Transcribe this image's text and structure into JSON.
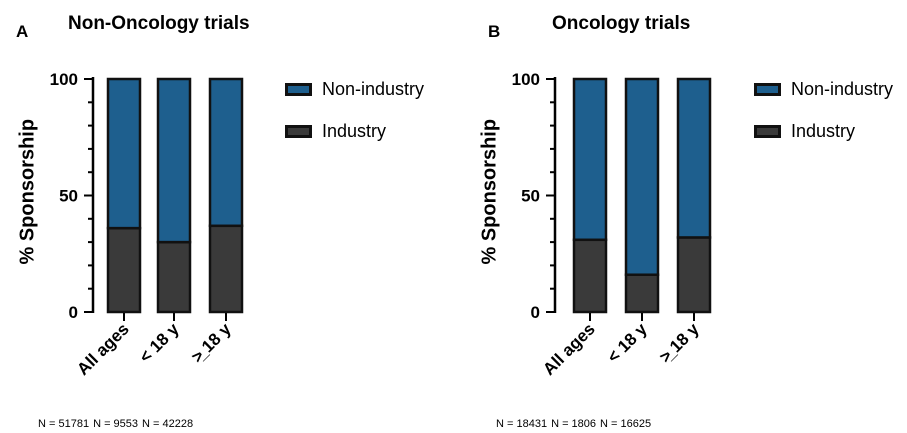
{
  "colors": {
    "non_industry": "#1e5f8e",
    "industry": "#3a3a3a",
    "stroke": "#111111"
  },
  "chart_data": [
    {
      "type": "bar",
      "stacked": true,
      "panel_label": "A",
      "title": "Non-Oncology trials",
      "ylabel": "% Sponsorship",
      "xlabel": "",
      "ylim": [
        0,
        100
      ],
      "yticks": [
        0,
        50,
        100
      ],
      "categories": [
        "All ages",
        "< 18 y",
        ">̲ 18 y"
      ],
      "series": [
        {
          "name": "Industry",
          "values": [
            36,
            30,
            37
          ]
        },
        {
          "name": "Non-industry",
          "values": [
            64,
            70,
            63
          ]
        }
      ],
      "legend": [
        "Non-industry",
        "Industry"
      ],
      "legend_position": "right",
      "annotations": [
        "N = 51781",
        "N = 9553",
        "N = 42228"
      ]
    },
    {
      "type": "bar",
      "stacked": true,
      "panel_label": "B",
      "title": "Oncology trials",
      "ylabel": "% Sponsorship",
      "xlabel": "",
      "ylim": [
        0,
        100
      ],
      "yticks": [
        0,
        50,
        100
      ],
      "categories": [
        "All ages",
        "< 18 y",
        ">̲ 18 y"
      ],
      "series": [
        {
          "name": "Industry",
          "values": [
            31,
            16,
            32
          ]
        },
        {
          "name": "Non-industry",
          "values": [
            69,
            84,
            68
          ]
        }
      ],
      "legend": [
        "Non-industry",
        "Industry"
      ],
      "legend_position": "right",
      "annotations": [
        "N = 18431",
        "N = 1806",
        "N = 16625"
      ]
    }
  ]
}
